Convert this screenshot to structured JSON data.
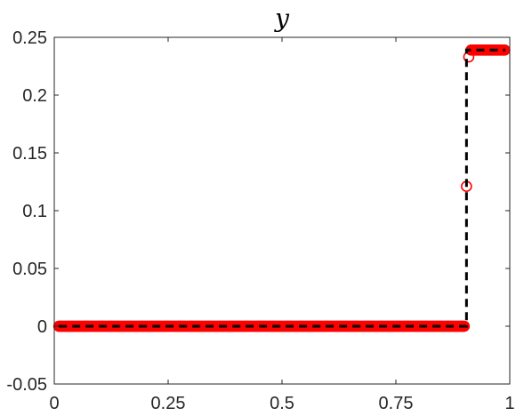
{
  "chart_data": {
    "type": "line",
    "title": "y",
    "xlabel": "",
    "ylabel": "",
    "xlim": [
      0,
      1
    ],
    "ylim": [
      -0.05,
      0.25
    ],
    "x_ticks": [
      "0",
      "0.25",
      "0.5",
      "0.75",
      "1"
    ],
    "y_ticks": [
      "-0.05",
      "0",
      "0.05",
      "0.1",
      "0.15",
      "0.2",
      "0.25"
    ],
    "grid": false,
    "colors": {
      "markers": "#ff0000",
      "reference": "#000000"
    },
    "series": [
      {
        "style": "red-circle-markers",
        "x_range": [
          0.01,
          0.99
        ],
        "segments": [
          {
            "x_start": 0.01,
            "x_end": 0.9,
            "step": 0.002,
            "y": 0
          },
          {
            "x_start": 0.915,
            "x_end": 0.99,
            "step": 0.002,
            "y": 0.239
          }
        ],
        "transition_points": [
          {
            "x": 0.905,
            "y": 0.121
          },
          {
            "x": 0.91,
            "y": 0.233
          }
        ]
      },
      {
        "style": "black-dashed-line",
        "points": [
          [
            0.01,
            0
          ],
          [
            0.905,
            0
          ],
          [
            0.905,
            0.239
          ],
          [
            0.99,
            0.239
          ]
        ]
      }
    ]
  }
}
